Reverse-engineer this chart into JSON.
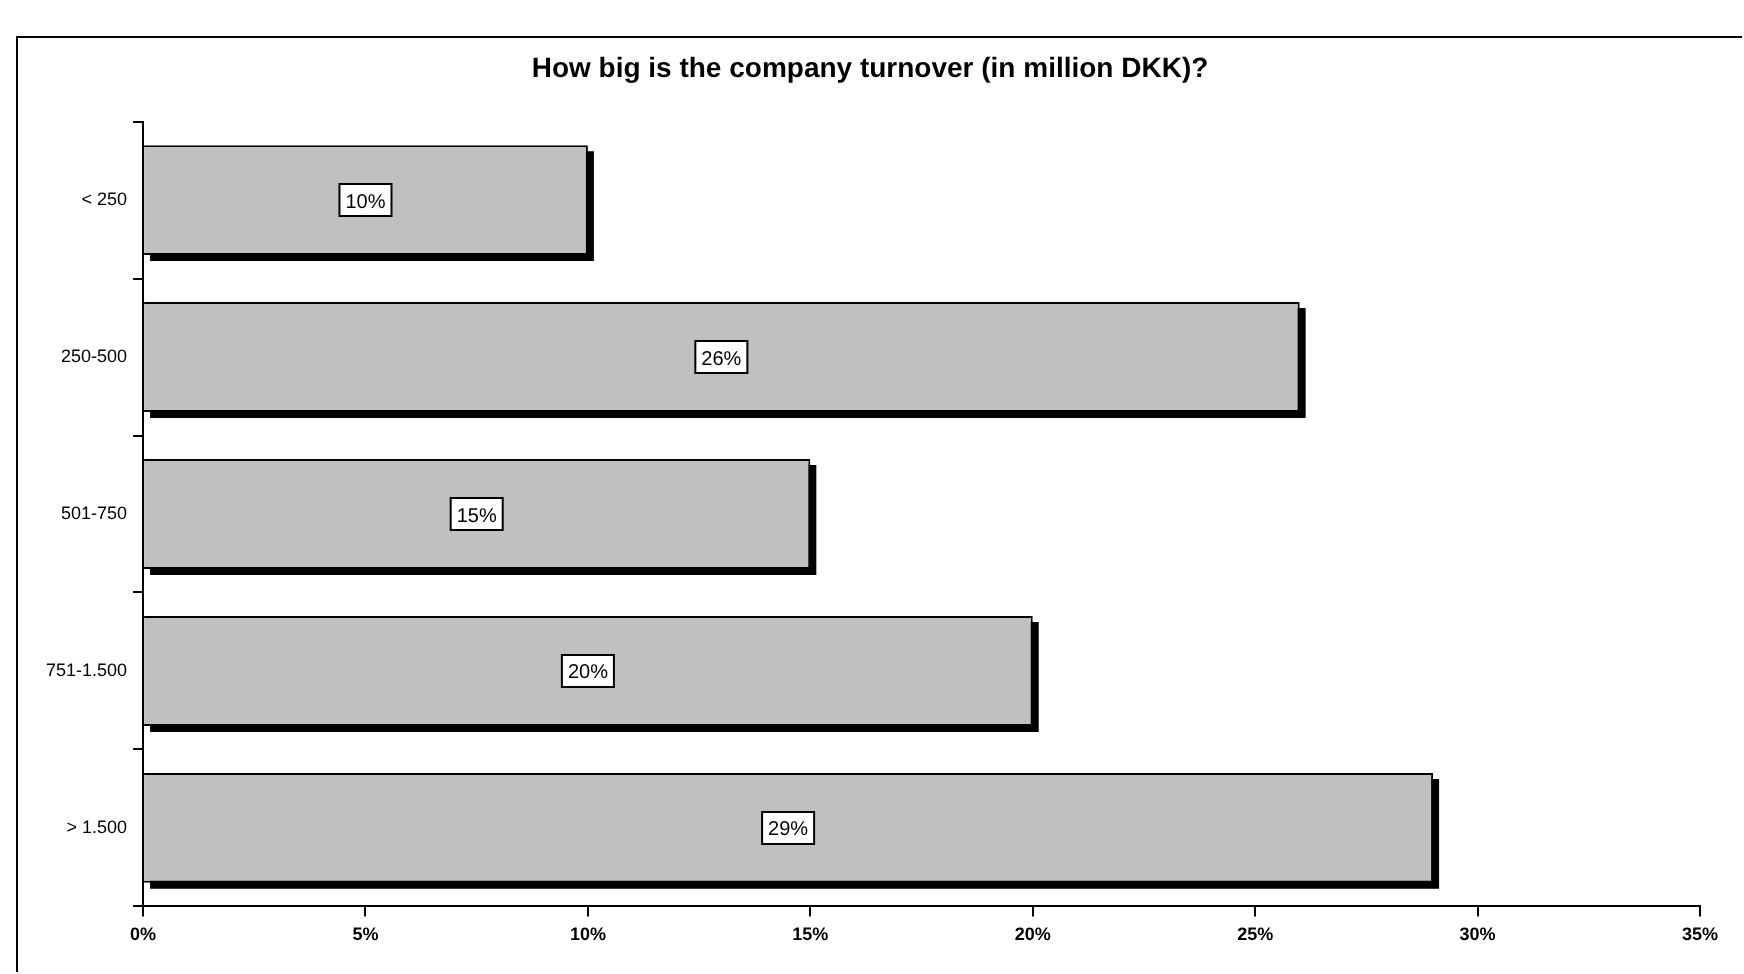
{
  "chart_data": {
    "type": "bar",
    "orientation": "horizontal",
    "title": "How big is the company turnover (in million DKK)?",
    "categories": [
      "< 250",
      "250-500",
      "501-750",
      "751-1.500",
      "> 1.500"
    ],
    "values": [
      10,
      26,
      15,
      20,
      29
    ],
    "color": "#c0c0c0",
    "xlim": [
      0,
      35
    ],
    "xticks": [
      {
        "value": 0,
        "label": "0%"
      },
      {
        "value": 5,
        "label": "5%"
      },
      {
        "value": 10,
        "label": "10%"
      },
      {
        "value": 15,
        "label": "15%"
      },
      {
        "value": 20,
        "label": "20%"
      },
      {
        "value": 25,
        "label": "25%"
      },
      {
        "value": 30,
        "label": "30%"
      },
      {
        "value": 35,
        "label": "35%"
      }
    ],
    "value_labels": [
      "10%",
      "26%",
      "15%",
      "20%",
      "29%"
    ],
    "grid": false,
    "legend": false
  }
}
